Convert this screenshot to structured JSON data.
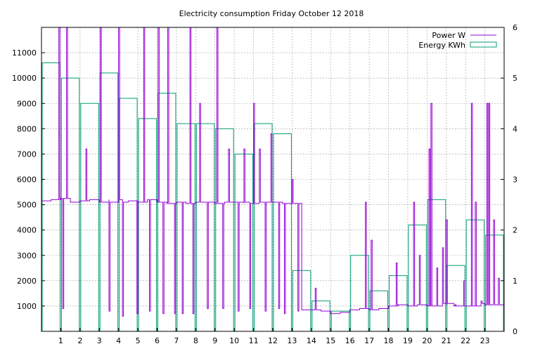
{
  "chart_data": {
    "type": "bar+line",
    "title": "Electricity consumption Friday October 12 2018",
    "grid": true,
    "legend_position": "top-right",
    "x_ticks": [
      1,
      2,
      3,
      4,
      5,
      6,
      7,
      8,
      9,
      10,
      11,
      12,
      13,
      14,
      15,
      16,
      17,
      18,
      19,
      20,
      21,
      22,
      23
    ],
    "x_range": [
      0,
      24
    ],
    "y_left": {
      "range": [
        0,
        12000
      ],
      "ticks": [
        1000,
        2000,
        3000,
        4000,
        5000,
        6000,
        7000,
        8000,
        9000,
        10000,
        11000
      ]
    },
    "y_right": {
      "range": [
        0,
        6
      ],
      "ticks": [
        0,
        1,
        2,
        3,
        4,
        5,
        6
      ]
    },
    "colors": {
      "power": "#9400d3",
      "energy": "#009e73"
    },
    "series": [
      {
        "name": "Energy KWh",
        "type": "bar",
        "axis": "right",
        "hours": [
          0,
          1,
          2,
          3,
          4,
          5,
          6,
          7,
          8,
          9,
          10,
          11,
          12,
          13,
          14,
          15,
          16,
          17,
          18,
          19,
          20,
          21,
          22,
          23
        ],
        "values": [
          5.3,
          5.0,
          4.5,
          5.1,
          4.6,
          4.2,
          4.7,
          4.1,
          4.1,
          4.0,
          3.5,
          4.1,
          3.9,
          1.2,
          0.6,
          0.4,
          1.5,
          0.8,
          1.1,
          2.1,
          2.6,
          1.3,
          2.2,
          1.9
        ]
      },
      {
        "name": "Power W",
        "type": "line",
        "axis": "left",
        "baseline_hours": [
          0,
          0.5,
          1,
          1.5,
          2,
          2.5,
          3,
          3.5,
          4,
          4.5,
          5,
          5.5,
          6,
          6.5,
          7,
          7.5,
          8,
          8.5,
          9,
          9.5,
          10,
          10.5,
          11,
          11.5,
          12,
          12.5,
          13,
          13.5,
          14,
          14.5,
          15,
          15.5,
          16,
          16.5,
          17,
          17.5,
          18,
          18.5,
          19,
          19.5,
          20,
          20.5,
          21,
          21.5,
          22,
          22.5,
          23,
          23.5,
          24
        ],
        "baseline_values": [
          5150,
          5200,
          5250,
          5100,
          5150,
          5200,
          5100,
          5200,
          5100,
          5150,
          5100,
          5200,
          5100,
          5050,
          5100,
          5050,
          5100,
          5100,
          5050,
          5100,
          5100,
          5050,
          5100,
          5100,
          5100,
          5050,
          5050,
          850,
          850,
          800,
          700,
          750,
          850,
          900,
          850,
          900,
          1000,
          1050,
          1000,
          1050,
          1000,
          1100,
          1050,
          1000,
          1000,
          1100,
          1050,
          1050,
          1000
        ],
        "spikes": [
          {
            "h": 0.9,
            "v": 12000
          },
          {
            "h": 1.3,
            "v": 12000
          },
          {
            "h": 1.1,
            "v": 900
          },
          {
            "h": 2.3,
            "v": 7200
          },
          {
            "h": 3.05,
            "v": 12000
          },
          {
            "h": 3.5,
            "v": 800
          },
          {
            "h": 4.0,
            "v": 12000
          },
          {
            "h": 4.2,
            "v": 600
          },
          {
            "h": 4.95,
            "v": 700
          },
          {
            "h": 5.3,
            "v": 12000
          },
          {
            "h": 5.6,
            "v": 800
          },
          {
            "h": 6.05,
            "v": 12000
          },
          {
            "h": 6.3,
            "v": 700
          },
          {
            "h": 6.55,
            "v": 12000
          },
          {
            "h": 6.9,
            "v": 700
          },
          {
            "h": 7.3,
            "v": 700
          },
          {
            "h": 7.7,
            "v": 12000
          },
          {
            "h": 7.85,
            "v": 700
          },
          {
            "h": 8.2,
            "v": 9000
          },
          {
            "h": 8.6,
            "v": 900
          },
          {
            "h": 9.1,
            "v": 12000
          },
          {
            "h": 9.4,
            "v": 900
          },
          {
            "h": 9.7,
            "v": 7200
          },
          {
            "h": 10.2,
            "v": 800
          },
          {
            "h": 10.5,
            "v": 7200
          },
          {
            "h": 10.8,
            "v": 900
          },
          {
            "h": 11.0,
            "v": 9000
          },
          {
            "h": 11.3,
            "v": 7200
          },
          {
            "h": 11.6,
            "v": 800
          },
          {
            "h": 11.9,
            "v": 7800
          },
          {
            "h": 12.3,
            "v": 900
          },
          {
            "h": 12.6,
            "v": 700
          },
          {
            "h": 13.0,
            "v": 6000
          },
          {
            "h": 13.3,
            "v": 800
          },
          {
            "h": 14.2,
            "v": 1700
          },
          {
            "h": 16.8,
            "v": 5100
          },
          {
            "h": 17.1,
            "v": 3600
          },
          {
            "h": 18.4,
            "v": 2700
          },
          {
            "h": 19.3,
            "v": 5100
          },
          {
            "h": 19.6,
            "v": 3000
          },
          {
            "h": 20.1,
            "v": 7200
          },
          {
            "h": 20.2,
            "v": 9000
          },
          {
            "h": 20.5,
            "v": 2500
          },
          {
            "h": 20.8,
            "v": 3300
          },
          {
            "h": 21.0,
            "v": 4400
          },
          {
            "h": 21.4,
            "v": 1000
          },
          {
            "h": 21.9,
            "v": 2000
          },
          {
            "h": 22.3,
            "v": 9000
          },
          {
            "h": 22.5,
            "v": 5100
          },
          {
            "h": 22.8,
            "v": 1200
          },
          {
            "h": 23.1,
            "v": 9000
          },
          {
            "h": 23.2,
            "v": 9000
          },
          {
            "h": 23.45,
            "v": 4400
          },
          {
            "h": 23.7,
            "v": 2100
          }
        ]
      }
    ]
  }
}
